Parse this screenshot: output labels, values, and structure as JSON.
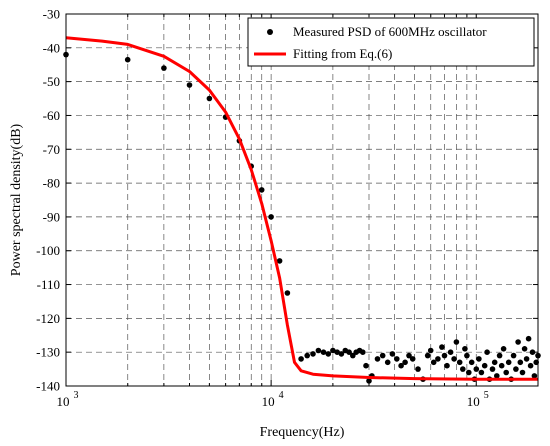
{
  "chart_data": {
    "type": "scatter",
    "xlabel": "Frequency(Hz)",
    "ylabel": "Power spectral density(dB)",
    "xscale": "log",
    "xlim": [
      1000,
      200000
    ],
    "ylim": [
      -140,
      -30
    ],
    "grid": true,
    "legend_position": "top-right",
    "x_tick_labels": [
      {
        "value": 1000,
        "base": "10",
        "exp": "3"
      },
      {
        "value": 10000,
        "base": "10",
        "exp": "4"
      },
      {
        "value": 100000,
        "base": "10",
        "exp": "5"
      }
    ],
    "y_tick_labels": [
      "-30",
      "-40",
      "-50",
      "-60",
      "-70",
      "-80",
      "-90",
      "-100",
      "-110",
      "-120",
      "-130",
      "-140"
    ],
    "series": [
      {
        "name": "Measured PSD of 600MHz oscillator",
        "style": "markers",
        "color": "#000000",
        "points": [
          [
            1000,
            -42
          ],
          [
            2000,
            -43.5
          ],
          [
            3000,
            -46
          ],
          [
            4000,
            -51
          ],
          [
            5000,
            -55
          ],
          [
            6000,
            -60.5
          ],
          [
            7000,
            -67.5
          ],
          [
            8000,
            -75
          ],
          [
            9000,
            -82
          ],
          [
            10000,
            -90
          ],
          [
            11000,
            -103
          ],
          [
            12000,
            -112.5
          ],
          [
            14000,
            -132
          ],
          [
            15000,
            -131
          ],
          [
            16000,
            -130.5
          ],
          [
            17000,
            -129.5
          ],
          [
            18000,
            -130
          ],
          [
            19000,
            -130.5
          ],
          [
            20000,
            -129.5
          ],
          [
            21000,
            -130
          ],
          [
            22000,
            -130.5
          ],
          [
            23000,
            -129.5
          ],
          [
            24000,
            -130
          ],
          [
            25000,
            -131
          ],
          [
            26000,
            -130
          ],
          [
            27000,
            -129.5
          ],
          [
            28000,
            -130
          ],
          [
            29000,
            -134
          ],
          [
            30000,
            -138.5
          ],
          [
            31000,
            -137
          ],
          [
            33000,
            -132
          ],
          [
            35000,
            -131
          ],
          [
            37000,
            -133
          ],
          [
            39000,
            -130.5
          ],
          [
            41000,
            -132
          ],
          [
            43000,
            -134
          ],
          [
            45000,
            -133
          ],
          [
            47000,
            -131
          ],
          [
            49000,
            -132
          ],
          [
            52000,
            -135
          ],
          [
            55000,
            -138
          ],
          [
            58000,
            -131
          ],
          [
            60000,
            -129.5
          ],
          [
            62000,
            -133
          ],
          [
            65000,
            -132
          ],
          [
            68000,
            -128.5
          ],
          [
            70000,
            -131
          ],
          [
            72000,
            -134
          ],
          [
            75000,
            -130
          ],
          [
            78000,
            -132
          ],
          [
            80000,
            -127
          ],
          [
            83000,
            -133
          ],
          [
            86000,
            -135
          ],
          [
            88000,
            -129
          ],
          [
            90000,
            -131
          ],
          [
            92000,
            -136
          ],
          [
            95000,
            -133
          ],
          [
            98000,
            -138
          ],
          [
            100000,
            -135
          ],
          [
            103000,
            -132
          ],
          [
            106000,
            -136
          ],
          [
            110000,
            -134
          ],
          [
            113000,
            -130
          ],
          [
            116000,
            -138
          ],
          [
            120000,
            -135
          ],
          [
            123000,
            -133
          ],
          [
            126000,
            -137
          ],
          [
            130000,
            -131
          ],
          [
            133000,
            -134
          ],
          [
            136000,
            -129
          ],
          [
            140000,
            -136
          ],
          [
            144000,
            -133
          ],
          [
            148000,
            -138
          ],
          [
            152000,
            -131
          ],
          [
            156000,
            -135
          ],
          [
            160000,
            -127
          ],
          [
            164000,
            -133
          ],
          [
            168000,
            -136
          ],
          [
            172000,
            -129
          ],
          [
            176000,
            -132
          ],
          [
            180000,
            -126
          ],
          [
            184000,
            -134
          ],
          [
            188000,
            -130
          ],
          [
            192000,
            -137
          ],
          [
            196000,
            -133
          ],
          [
            200000,
            -131
          ]
        ]
      },
      {
        "name": "Fitting from Eq.(6)",
        "style": "line",
        "color": "#ff0000",
        "points": [
          [
            1000,
            -37
          ],
          [
            1500,
            -38
          ],
          [
            2000,
            -39
          ],
          [
            3000,
            -42.5
          ],
          [
            4000,
            -47
          ],
          [
            5000,
            -52.5
          ],
          [
            6000,
            -59
          ],
          [
            7000,
            -67
          ],
          [
            8000,
            -76
          ],
          [
            9000,
            -86
          ],
          [
            10000,
            -97
          ],
          [
            11000,
            -108
          ],
          [
            12000,
            -122
          ],
          [
            13000,
            -133
          ],
          [
            14000,
            -135.5
          ],
          [
            16000,
            -136.5
          ],
          [
            20000,
            -137
          ],
          [
            30000,
            -137.5
          ],
          [
            50000,
            -137.8
          ],
          [
            100000,
            -138
          ],
          [
            200000,
            -138
          ]
        ]
      }
    ]
  }
}
